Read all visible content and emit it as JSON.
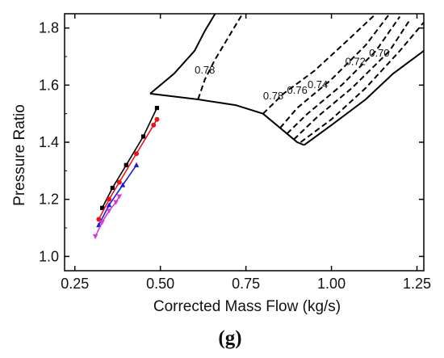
{
  "chart_data": {
    "type": "scatter",
    "title": "",
    "xlabel": "Corrected Mass Flow (kg/s)",
    "ylabel": "Pressure Ratio",
    "xlim": [
      0.22,
      1.27
    ],
    "ylim": [
      0.95,
      1.85
    ],
    "xticks": [
      "0.25",
      "0.50",
      "0.75",
      "1.00",
      "1.25"
    ],
    "yticks": [
      "1.0",
      "1.2",
      "1.4",
      "1.6",
      "1.8"
    ],
    "panel_label": "(g)",
    "boundary_lines": [
      {
        "color": "#000000",
        "style": "solid",
        "x": [
          0.47,
          0.54,
          0.6,
          0.63,
          0.66
        ],
        "y": [
          1.57,
          1.64,
          1.72,
          1.79,
          1.85
        ]
      },
      {
        "color": "#000000",
        "style": "solid",
        "x": [
          0.47,
          0.61,
          0.72,
          0.8,
          0.85,
          0.9,
          0.92
        ],
        "y": [
          1.57,
          1.55,
          1.53,
          1.5,
          1.45,
          1.4,
          1.39
        ]
      },
      {
        "color": "#000000",
        "style": "solid",
        "x": [
          0.92,
          1.0,
          1.1,
          1.18,
          1.27
        ],
        "y": [
          1.39,
          1.46,
          1.55,
          1.64,
          1.72
        ]
      }
    ],
    "speed_lines": [
      {
        "label": "0.78",
        "color": "#000000",
        "style": "dashed",
        "x": [
          0.61,
          0.63,
          0.66,
          0.7,
          0.74
        ],
        "y": [
          1.55,
          1.62,
          1.69,
          1.77,
          1.85
        ]
      },
      {
        "label": "0.78",
        "color": "#000000",
        "style": "dashed",
        "x": [
          0.8,
          0.86,
          0.95,
          1.05,
          1.13
        ],
        "y": [
          1.5,
          1.57,
          1.65,
          1.76,
          1.85
        ]
      },
      {
        "label": "0.76",
        "color": "#000000",
        "style": "dashed",
        "x": [
          0.85,
          0.9,
          1.0,
          1.1,
          1.17
        ],
        "y": [
          1.45,
          1.52,
          1.62,
          1.74,
          1.85
        ]
      },
      {
        "label": "0.74",
        "color": "#000000",
        "style": "dashed",
        "x": [
          0.87,
          0.93,
          1.03,
          1.13,
          1.2
        ],
        "y": [
          1.43,
          1.5,
          1.6,
          1.72,
          1.84
        ]
      },
      {
        "label": "0.72",
        "color": "#000000",
        "style": "dashed",
        "x": [
          0.89,
          0.96,
          1.06,
          1.17,
          1.23
        ],
        "y": [
          1.41,
          1.49,
          1.59,
          1.72,
          1.83
        ]
      },
      {
        "label": "0.70",
        "color": "#000000",
        "style": "dashed",
        "x": [
          0.91,
          1.0,
          1.1,
          1.2,
          1.27
        ],
        "y": [
          1.4,
          1.48,
          1.59,
          1.72,
          1.82
        ]
      }
    ],
    "speed_labels": [
      {
        "text": "0.78",
        "x": 0.63,
        "y": 1.64
      },
      {
        "text": "0.78",
        "x": 0.83,
        "y": 1.55
      },
      {
        "text": "0.76",
        "x": 0.9,
        "y": 1.57
      },
      {
        "text": "0.74",
        "x": 0.96,
        "y": 1.59
      },
      {
        "text": "0.72",
        "x": 1.07,
        "y": 1.67
      },
      {
        "text": "0.70",
        "x": 1.14,
        "y": 1.7
      }
    ],
    "series": [
      {
        "color": "#000000",
        "marker": "square",
        "x": [
          0.33,
          0.36,
          0.4,
          0.45,
          0.49
        ],
        "y": [
          1.17,
          1.24,
          1.32,
          1.42,
          1.52
        ]
      },
      {
        "color": "#e8141c",
        "marker": "circle",
        "x": [
          0.32,
          0.35,
          0.38,
          0.43,
          0.48,
          0.49
        ],
        "y": [
          1.13,
          1.2,
          1.26,
          1.36,
          1.46,
          1.48
        ]
      },
      {
        "color": "#1c1cd6",
        "marker": "triangle-up",
        "x": [
          0.32,
          0.35,
          0.39,
          0.43
        ],
        "y": [
          1.11,
          1.18,
          1.25,
          1.32
        ]
      },
      {
        "color": "#d63ad6",
        "marker": "triangle-down",
        "x": [
          0.31,
          0.33,
          0.35,
          0.37,
          0.38
        ],
        "y": [
          1.07,
          1.12,
          1.16,
          1.19,
          1.21
        ]
      }
    ]
  }
}
